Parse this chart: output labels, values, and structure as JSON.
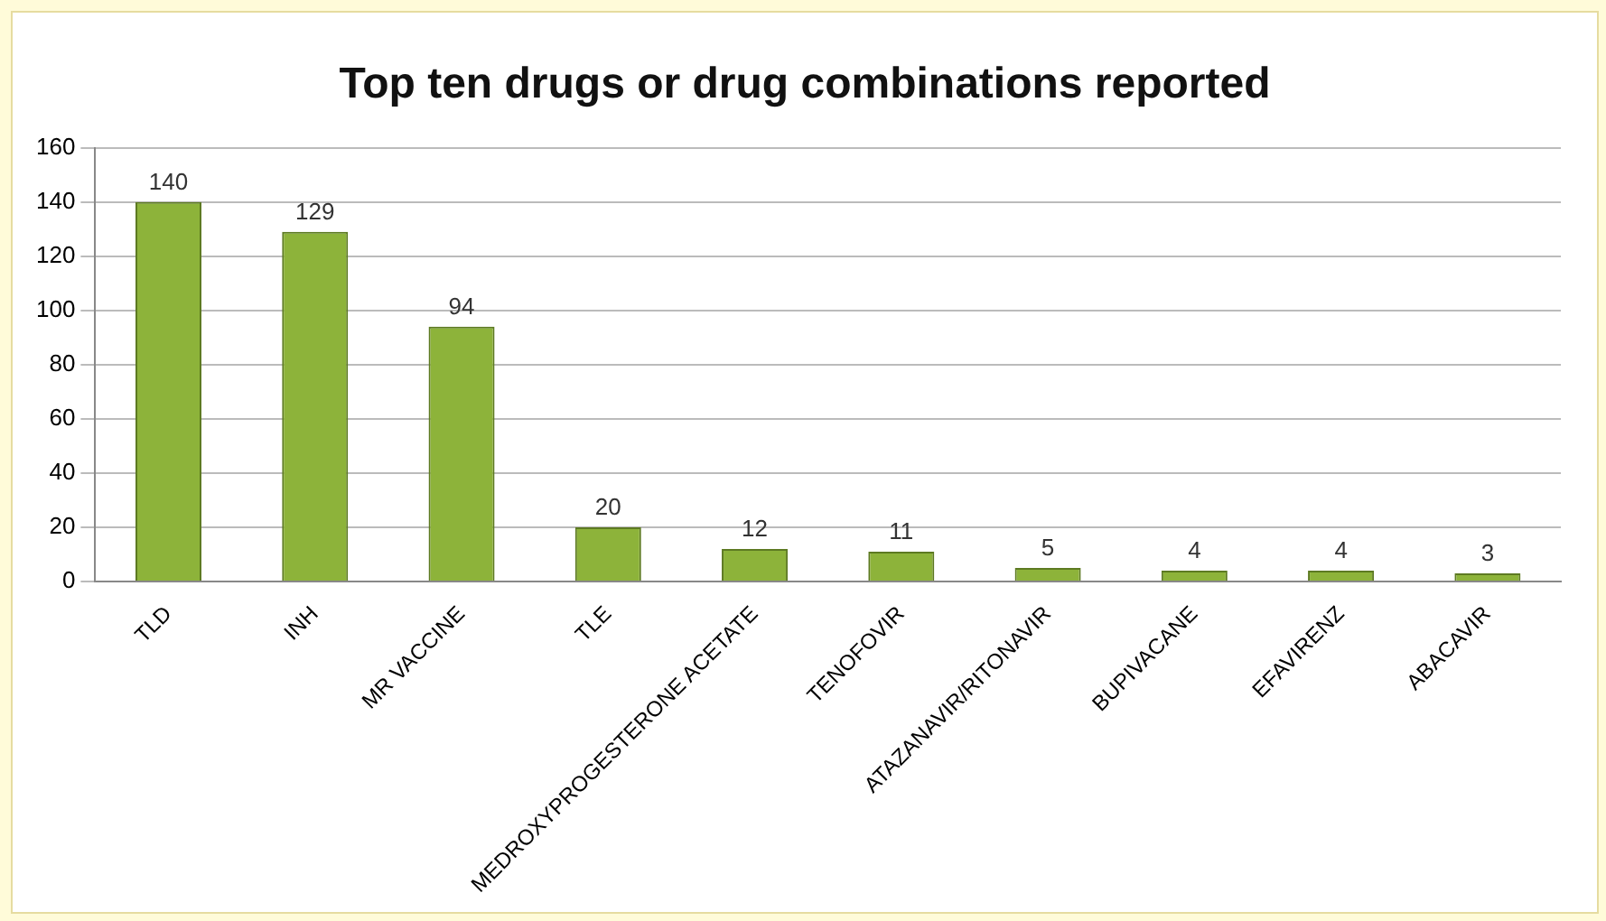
{
  "chart_data": {
    "type": "bar",
    "title": "Top ten drugs or drug combinations reported",
    "categories": [
      "TLD",
      "INH",
      "MR VACCINE",
      "TLE",
      "MEDROXYPROGESTERONE ACETATE",
      "TENOFOVIR",
      "ATAZANAVIR/RITONAVIR",
      "BUPIVACANE",
      "EFAVIRENZ",
      "ABACAVIR"
    ],
    "values": [
      140,
      129,
      94,
      20,
      12,
      11,
      5,
      4,
      4,
      3
    ],
    "color": "#8db33a",
    "ylim": [
      0,
      160
    ],
    "yticks": [
      0,
      20,
      40,
      60,
      80,
      100,
      120,
      140,
      160
    ],
    "grid": "y",
    "data_labels": true,
    "legend": false
  }
}
